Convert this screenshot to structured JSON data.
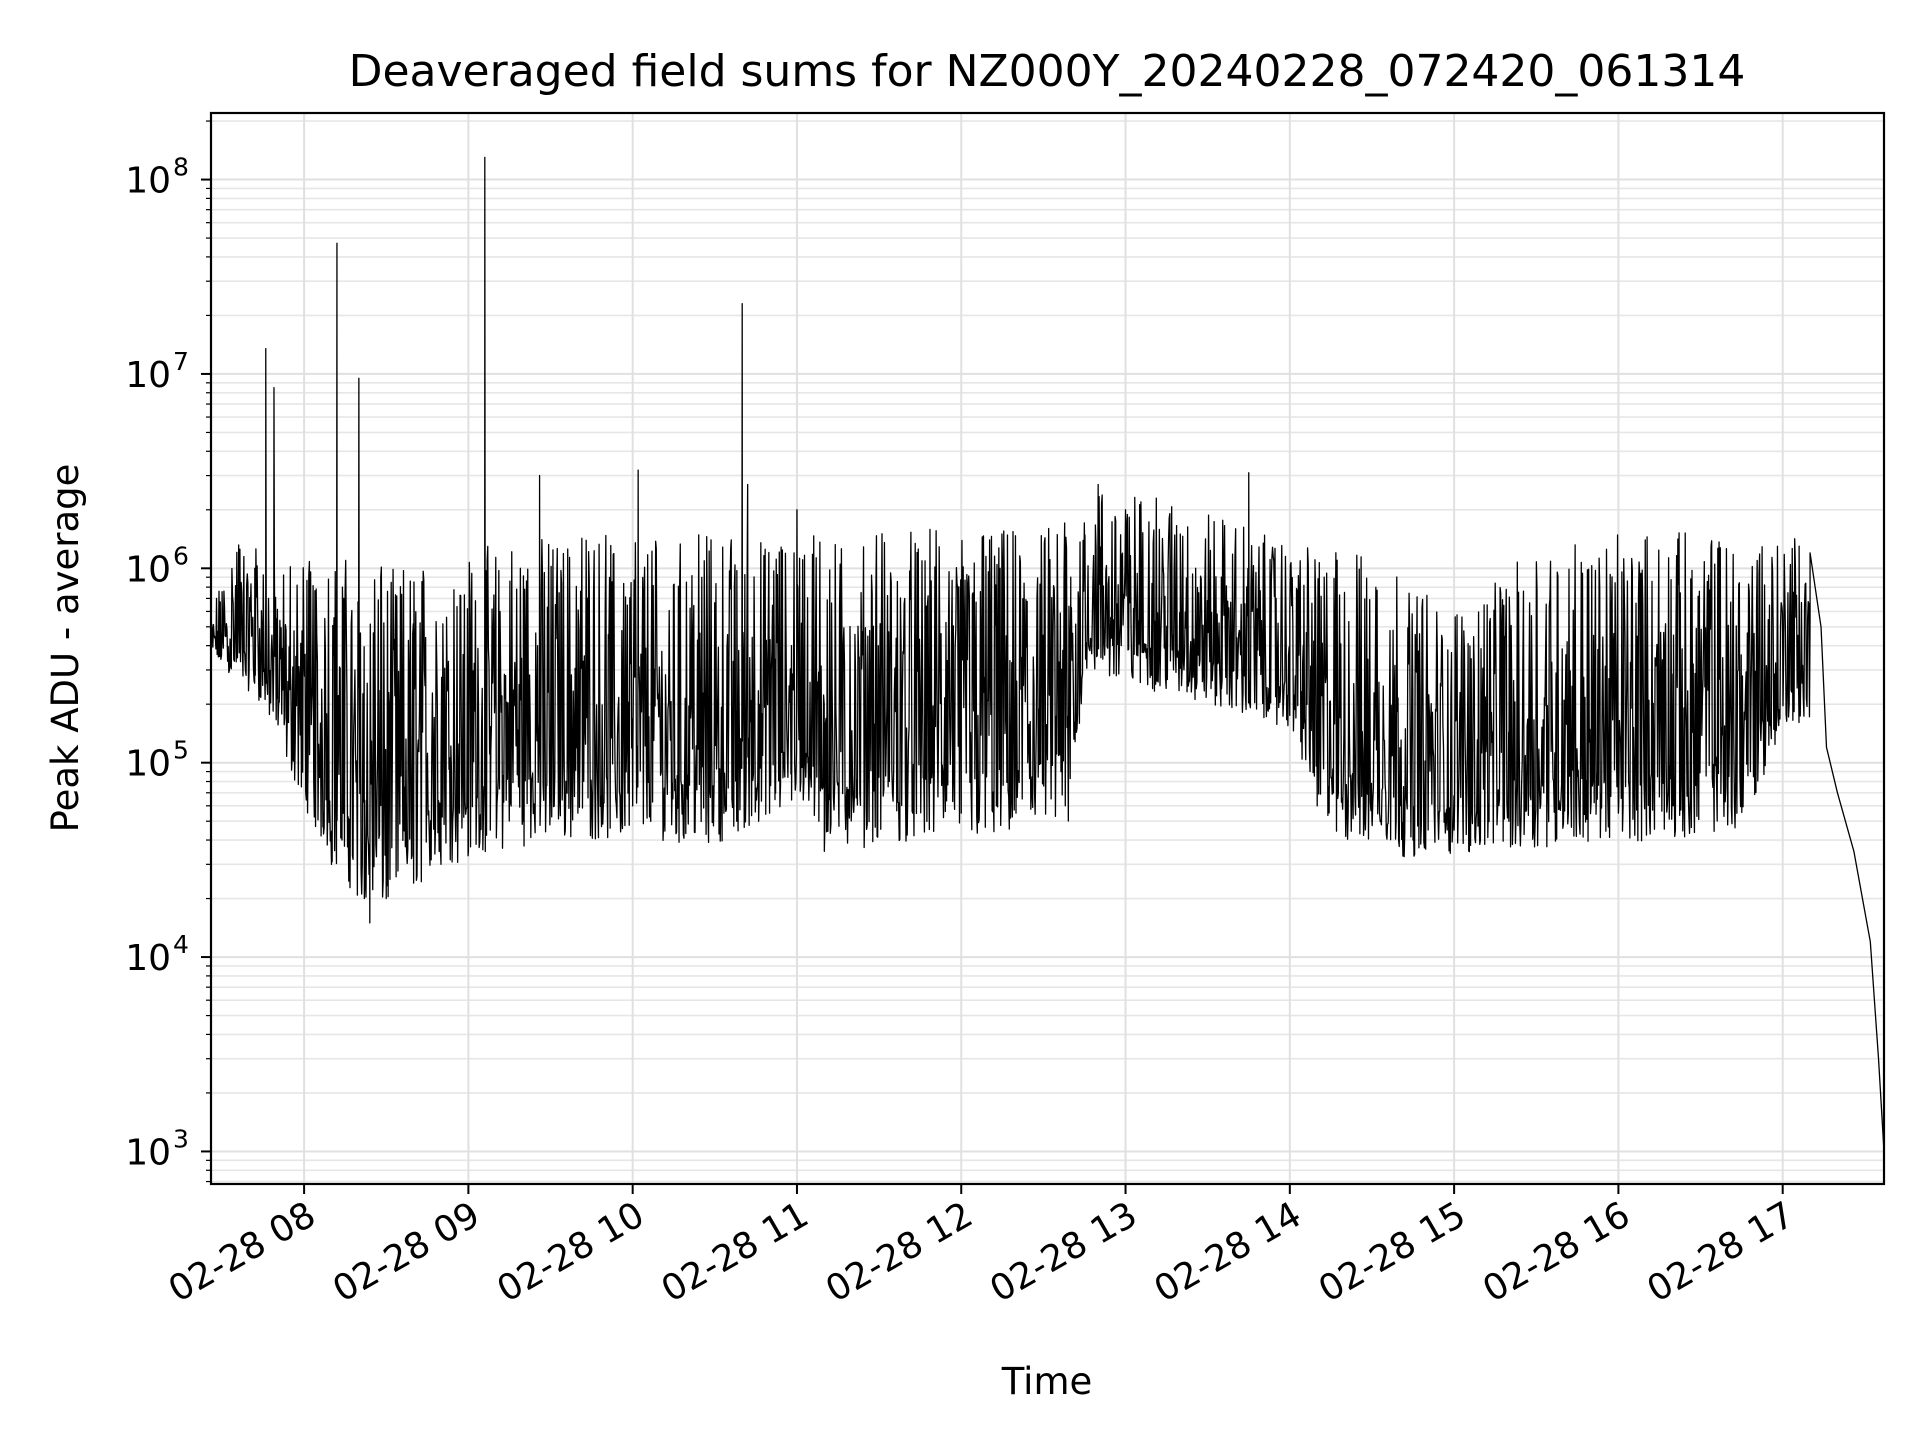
{
  "chart_data": {
    "type": "line",
    "title": "Deaveraged field sums for NZ000Y_20240228_072420_061314",
    "xlabel": "Time",
    "ylabel": "Peak ADU - average",
    "y_scale": "log",
    "ylim": [
      680,
      220000000
    ],
    "xlim": [
      "2024-02-28 07:26",
      "2024-02-28 17:37"
    ],
    "grid": "on (major and minor)",
    "legend": "none",
    "line_color": "#000000",
    "x_ticks": [
      {
        "value": "2024-02-28 08:00",
        "label": "02-28 08"
      },
      {
        "value": "2024-02-28 09:00",
        "label": "02-28 09"
      },
      {
        "value": "2024-02-28 10:00",
        "label": "02-28 10"
      },
      {
        "value": "2024-02-28 11:00",
        "label": "02-28 11"
      },
      {
        "value": "2024-02-28 12:00",
        "label": "02-28 12"
      },
      {
        "value": "2024-02-28 13:00",
        "label": "02-28 13"
      },
      {
        "value": "2024-02-28 14:00",
        "label": "02-28 14"
      },
      {
        "value": "2024-02-28 15:00",
        "label": "02-28 15"
      },
      {
        "value": "2024-02-28 16:00",
        "label": "02-28 16"
      },
      {
        "value": "2024-02-28 17:00",
        "label": "02-28 17"
      }
    ],
    "y_ticks": [
      {
        "value": 1000,
        "base": "10",
        "exp": "3"
      },
      {
        "value": 10000,
        "base": "10",
        "exp": "4"
      },
      {
        "value": 100000,
        "base": "10",
        "exp": "5"
      },
      {
        "value": 1000000,
        "base": "10",
        "exp": "6"
      },
      {
        "value": 10000000,
        "base": "10",
        "exp": "7"
      },
      {
        "value": 100000000,
        "base": "10",
        "exp": "8"
      }
    ],
    "series": [
      {
        "points": [
          [
            "2024-02-28 07:26",
            380000
          ],
          [
            "2024-02-28 07:30",
            470000
          ],
          [
            "2024-02-28 07:36",
            750000
          ],
          [
            "2024-02-28 07:38",
            1150000
          ],
          [
            "2024-02-28 07:42",
            1000000
          ],
          [
            "2024-02-28 07:45",
            500000
          ],
          [
            "2024-02-28 07:46",
            13500000
          ],
          [
            "2024-02-28 07:47",
            700000
          ],
          [
            "2024-02-28 07:49",
            8500000
          ],
          [
            "2024-02-28 07:50",
            550000
          ],
          [
            "2024-02-28 07:55",
            300000
          ],
          [
            "2024-02-28 07:58",
            220000
          ],
          [
            "2024-02-28 08:02",
            110000
          ],
          [
            "2024-02-28 08:07",
            55000
          ],
          [
            "2024-02-28 08:10",
            30000
          ],
          [
            "2024-02-28 08:12",
            47000000
          ],
          [
            "2024-02-28 08:14",
            800000
          ],
          [
            "2024-02-28 08:18",
            100000
          ],
          [
            "2024-02-28 08:20",
            9500000
          ],
          [
            "2024-02-28 08:22",
            20000
          ],
          [
            "2024-02-28 08:24",
            15000
          ],
          [
            "2024-02-28 08:28",
            900000
          ],
          [
            "2024-02-28 08:30",
            20000
          ],
          [
            "2024-02-28 08:40",
            24000
          ],
          [
            "2024-02-28 08:50",
            30000
          ],
          [
            "2024-02-28 09:00",
            35000
          ],
          [
            "2024-02-28 09:06",
            130000000
          ],
          [
            "2024-02-28 09:08",
            45000
          ],
          [
            "2024-02-28 09:20",
            50000
          ],
          [
            "2024-02-28 09:26",
            3000000
          ],
          [
            "2024-02-28 09:40",
            55000
          ],
          [
            "2024-02-28 10:00",
            60000
          ],
          [
            "2024-02-28 10:02",
            3200000
          ],
          [
            "2024-02-28 10:20",
            65000
          ],
          [
            "2024-02-28 10:36",
            1400000
          ],
          [
            "2024-02-28 10:38",
            50000
          ],
          [
            "2024-02-28 10:40",
            23000000
          ],
          [
            "2024-02-28 10:42",
            2700000
          ],
          [
            "2024-02-28 10:46",
            50000
          ],
          [
            "2024-02-28 10:50",
            55000
          ],
          [
            "2024-02-28 10:52",
            340000
          ],
          [
            "2024-02-28 10:58",
            400000
          ],
          [
            "2024-02-28 11:00",
            2000000
          ],
          [
            "2024-02-28 11:04",
            100000
          ],
          [
            "2024-02-28 11:08",
            50000
          ],
          [
            "2024-02-28 11:10",
            35000
          ],
          [
            "2024-02-28 11:20",
            60000
          ],
          [
            "2024-02-28 11:40",
            55000
          ],
          [
            "2024-02-28 12:00",
            55000
          ],
          [
            "2024-02-28 12:20",
            55000
          ],
          [
            "2024-02-28 12:38",
            60000
          ],
          [
            "2024-02-28 12:40",
            900000
          ],
          [
            "2024-02-28 12:45",
            1500000
          ],
          [
            "2024-02-28 12:50",
            2700000
          ],
          [
            "2024-02-28 12:55",
            1200000
          ],
          [
            "2024-02-28 13:00",
            2000000
          ],
          [
            "2024-02-28 13:10",
            700000
          ],
          [
            "2024-02-28 13:20",
            1500000
          ],
          [
            "2024-02-28 13:35",
            900000
          ],
          [
            "2024-02-28 13:45",
            3100000
          ],
          [
            "2024-02-28 13:55",
            700000
          ],
          [
            "2024-02-28 14:00",
            600000
          ],
          [
            "2024-02-28 14:05",
            150000
          ],
          [
            "2024-02-28 14:10",
            60000
          ],
          [
            "2024-02-28 14:30",
            50000
          ],
          [
            "2024-02-28 14:45",
            40000
          ],
          [
            "2024-02-28 15:00",
            45000
          ],
          [
            "2024-02-28 15:20",
            50000
          ],
          [
            "2024-02-28 15:40",
            55000
          ],
          [
            "2024-02-28 16:00",
            55000
          ],
          [
            "2024-02-28 16:20",
            60000
          ],
          [
            "2024-02-28 16:40",
            60000
          ],
          [
            "2024-02-28 16:50",
            150000
          ],
          [
            "2024-02-28 17:00",
            400000
          ],
          [
            "2024-02-28 17:06",
            1300000
          ],
          [
            "2024-02-28 17:10",
            1200000
          ],
          [
            "2024-02-28 17:14",
            500000
          ],
          [
            "2024-02-28 17:16",
            120000
          ],
          [
            "2024-02-28 17:20",
            70000
          ],
          [
            "2024-02-28 17:26",
            35000
          ],
          [
            "2024-02-28 17:32",
            12000
          ],
          [
            "2024-02-28 17:35",
            3000
          ],
          [
            "2024-02-28 17:37",
            1000
          ]
        ],
        "envelope": {
          "note_label": "",
          "upper": [
            [
              "2024-02-28 07:26",
              600000
            ],
            [
              "2024-02-28 07:38",
              1800000
            ],
            [
              "2024-02-28 07:50",
              1000000
            ],
            [
              "2024-02-28 08:00",
              1300000
            ],
            [
              "2024-02-28 08:30",
              1000000
            ],
            [
              "2024-02-28 09:00",
              1300000
            ],
            [
              "2024-02-28 09:30",
              1500000
            ],
            [
              "2024-02-28 10:00",
              1500000
            ],
            [
              "2024-02-28 10:30",
              1500000
            ],
            [
              "2024-02-28 10:50",
              1400000
            ],
            [
              "2024-02-28 11:00",
              1500000
            ],
            [
              "2024-02-28 11:30",
              1600000
            ],
            [
              "2024-02-28 12:00",
              1600000
            ],
            [
              "2024-02-28 12:30",
              1600000
            ],
            [
              "2024-02-28 12:45",
              2500000
            ],
            [
              "2024-02-28 13:00",
              2500000
            ],
            [
              "2024-02-28 13:30",
              2000000
            ],
            [
              "2024-02-28 14:00",
              1300000
            ],
            [
              "2024-02-28 14:30",
              1200000
            ],
            [
              "2024-02-28 15:00",
              600000
            ],
            [
              "2024-02-28 15:30",
              1300000
            ],
            [
              "2024-02-28 16:00",
              1500000
            ],
            [
              "2024-02-28 16:30",
              1600000
            ],
            [
              "2024-02-28 17:00",
              1600000
            ],
            [
              "2024-02-28 17:10",
              1400000
            ]
          ],
          "lower": [
            [
              "2024-02-28 07:26",
              350000
            ],
            [
              "2024-02-28 07:45",
              200000
            ],
            [
              "2024-02-28 08:00",
              60000
            ],
            [
              "2024-02-28 08:10",
              30000
            ],
            [
              "2024-02-28 08:25",
              16000
            ],
            [
              "2024-02-28 08:45",
              25000
            ],
            [
              "2024-02-28 09:00",
              32000
            ],
            [
              "2024-02-28 09:30",
              40000
            ],
            [
              "2024-02-28 10:00",
              40000
            ],
            [
              "2024-02-28 10:30",
              38000
            ],
            [
              "2024-02-28 11:00",
              60000
            ],
            [
              "2024-02-28 11:15",
              35000
            ],
            [
              "2024-02-28 11:45",
              40000
            ],
            [
              "2024-02-28 12:15",
              40000
            ],
            [
              "2024-02-28 12:40",
              45000
            ],
            [
              "2024-02-28 12:45",
              300000
            ],
            [
              "2024-02-28 13:00",
              250000
            ],
            [
              "2024-02-28 13:30",
              200000
            ],
            [
              "2024-02-28 14:00",
              150000
            ],
            [
              "2024-02-28 14:15",
              40000
            ],
            [
              "2024-02-28 14:45",
              32000
            ],
            [
              "2024-02-28 15:15",
              35000
            ],
            [
              "2024-02-28 15:45",
              38000
            ],
            [
              "2024-02-28 16:15",
              40000
            ],
            [
              "2024-02-28 16:45",
              45000
            ],
            [
              "2024-02-28 17:00",
              150000
            ]
          ]
        }
      }
    ]
  }
}
